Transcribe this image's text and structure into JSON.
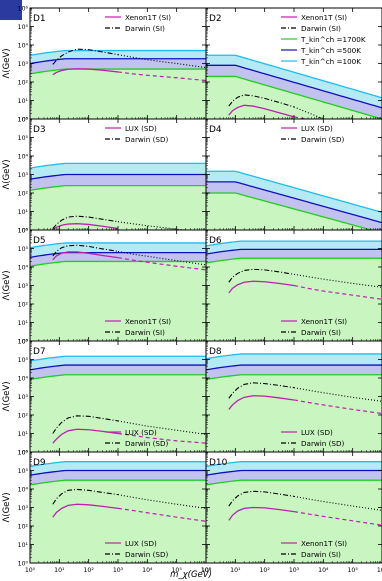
{
  "figure": {
    "ylabel": "Λ(GeV)",
    "xlabel": "m_χ(GeV)",
    "x_ticks": [
      "10⁰",
      "10¹",
      "10²",
      "10³",
      "10⁴",
      "10⁵",
      "10⁶",
      "10⁰",
      "10¹",
      "10²",
      "10³",
      "10⁴",
      "10⁵",
      "10⁶"
    ],
    "y_ticks": [
      "10⁰",
      "10¹",
      "10²",
      "10³",
      "10⁴",
      "10⁵",
      "10⁶"
    ],
    "colors": {
      "green_fill": "#c8f5c0",
      "purple_fill": "#c2c2f0",
      "cyan_fill": "#b4eaf4",
      "green_line": "#22cc22",
      "blue_line": "#1010bb",
      "cyan_line": "#22bbee",
      "magenta_line": "#bb22aa",
      "black_line": "#000000"
    },
    "temperature_legend": [
      {
        "label": "T_kin^ch =1700K",
        "color": "#22cc22"
      },
      {
        "label": "T_kin^ch =500K",
        "color": "#1010bb"
      },
      {
        "label": "T_kin^ch =100K",
        "color": "#22bbee"
      }
    ]
  },
  "chart_data": [
    {
      "type": "line",
      "panel": "D1",
      "xscale": "log",
      "yscale": "log",
      "xlim": [
        1,
        1000000
      ],
      "ylim": [
        1,
        1000000
      ],
      "band_shape": "flat",
      "bands": {
        "T1700K": 500,
        "T500K": 1800,
        "T100K": 5000
      },
      "series": [
        {
          "name": "Xenon1T (SI)",
          "style": "solid",
          "x": [
            6,
            8,
            12,
            20,
            40,
            100,
            300,
            1000,
            3000,
            10000,
            100000,
            1000000
          ],
          "y": [
            250,
            330,
            420,
            490,
            520,
            500,
            430,
            350,
            280,
            230,
            170,
            120
          ]
        },
        {
          "name": "Darwin (SI)",
          "style": "dashdot",
          "x": [
            6,
            8,
            12,
            20,
            40,
            100,
            300,
            1000,
            3000,
            10000,
            100000,
            1000000
          ],
          "y": [
            900,
            1500,
            2600,
            4200,
            6000,
            5600,
            4200,
            3000,
            2200,
            1600,
            1000,
            600
          ]
        }
      ],
      "legend": [
        "Xenon1T (SI)",
        "Darwin (SI)"
      ]
    },
    {
      "type": "line",
      "panel": "D2",
      "xscale": "log",
      "yscale": "log",
      "xlim": [
        1,
        1000000
      ],
      "ylim": [
        1,
        1000000
      ],
      "band_shape": "falling",
      "bands": {
        "T1700K": [
          200,
          1
        ],
        "T500K": [
          800,
          4
        ],
        "T100K": [
          2800,
          14
        ]
      },
      "series": [
        {
          "name": "Xenon1T (SI)",
          "style": "solid",
          "x": [
            6,
            8,
            12,
            20,
            40,
            100,
            300,
            1000,
            2500
          ],
          "y": [
            1.6,
            2.8,
            4.2,
            5.5,
            5.0,
            3.6,
            2.2,
            1.3,
            1.0
          ]
        },
        {
          "name": "Darwin (SI)",
          "style": "dashdot",
          "x": [
            6,
            8,
            12,
            20,
            40,
            100,
            300,
            1000,
            3000,
            10000
          ],
          "y": [
            5,
            9,
            15,
            20,
            18,
            13,
            8,
            4.5,
            2.2,
            1.0
          ]
        }
      ],
      "legend": [
        "Xenon1T (SI)",
        "Darwin (SI)",
        "T_kin^ch =1700K",
        "T_kin^ch =500K",
        "T_kin^ch =100K"
      ]
    },
    {
      "type": "line",
      "panel": "D3",
      "xscale": "log",
      "yscale": "log",
      "xlim": [
        1,
        1000000
      ],
      "ylim": [
        1,
        1000000
      ],
      "band_shape": "flat",
      "bands": {
        "T1700K": 250,
        "T500K": 1000,
        "T100K": 4000
      },
      "series": [
        {
          "name": "LUX (SD)",
          "style": "solid",
          "x": [
            6,
            8,
            12,
            20,
            40,
            100,
            300,
            1000
          ],
          "y": [
            1.1,
            1.4,
            1.8,
            2.1,
            2.2,
            2.0,
            1.6,
            1.2
          ]
        },
        {
          "name": "Darwin (SD)",
          "style": "dashdot",
          "x": [
            6,
            8,
            12,
            20,
            40,
            100,
            300,
            1000,
            10000,
            100000,
            1000000
          ],
          "y": [
            1.2,
            2.0,
            3.4,
            5.0,
            5.6,
            5.0,
            3.8,
            2.8,
            1.7,
            1.1,
            0.8
          ]
        }
      ],
      "legend": [
        "LUX (SD)",
        "Darwin (SD)"
      ]
    },
    {
      "type": "line",
      "panel": "D4",
      "xscale": "log",
      "yscale": "log",
      "xlim": [
        1,
        1000000
      ],
      "ylim": [
        1,
        1000000
      ],
      "band_shape": "falling",
      "bands": {
        "T1700K": [
          100,
          0.7
        ],
        "T500K": [
          400,
          2.5
        ],
        "T100K": [
          1500,
          9
        ]
      },
      "series": [],
      "legend": [
        "LUX (SD)",
        "Darwin (SD)"
      ]
    },
    {
      "type": "line",
      "panel": "D5",
      "xscale": "log",
      "yscale": "log",
      "xlim": [
        1,
        1000000
      ],
      "ylim": [
        1,
        1000000
      ],
      "band_shape": "flat",
      "bands": {
        "T1700K": 20000,
        "T500K": 60000,
        "T100K": 200000
      },
      "series": [
        {
          "name": "Xenon1T (SI)",
          "style": "solid",
          "x": [
            6,
            8,
            12,
            20,
            40,
            100,
            300,
            1000,
            3000,
            10000,
            100000,
            1000000
          ],
          "y": [
            25000,
            40000,
            55000,
            65000,
            65000,
            55000,
            42000,
            32000,
            24000,
            18000,
            11000,
            7000
          ]
        },
        {
          "name": "Darwin (SI)",
          "style": "dashdot",
          "x": [
            6,
            8,
            12,
            20,
            40,
            100,
            300,
            1000,
            3000,
            10000,
            100000,
            1000000
          ],
          "y": [
            40000,
            70000,
            110000,
            140000,
            150000,
            130000,
            95000,
            70000,
            50000,
            38000,
            22000,
            13000
          ]
        }
      ],
      "legend": [
        "Xenon1T (SI)",
        "Darwin (SI)"
      ]
    },
    {
      "type": "line",
      "panel": "D6",
      "xscale": "log",
      "yscale": "log",
      "xlim": [
        1,
        1000000
      ],
      "ylim": [
        1,
        1000000
      ],
      "band_shape": "flat",
      "bands": {
        "T1700K": 30000,
        "T500K": 90000,
        "T100K": 250000
      },
      "series": [
        {
          "name": "Xenon1T (SI)",
          "style": "solid",
          "x": [
            6,
            8,
            12,
            20,
            40,
            100,
            300,
            1000,
            3000,
            10000,
            100000,
            1000000
          ],
          "y": [
            400,
            700,
            1100,
            1500,
            1700,
            1600,
            1300,
            1000,
            700,
            500,
            300,
            180
          ]
        },
        {
          "name": "Darwin (SI)",
          "style": "dashdot",
          "x": [
            6,
            8,
            12,
            20,
            40,
            100,
            300,
            1000,
            3000,
            10000,
            100000,
            1000000
          ],
          "y": [
            1500,
            2800,
            4500,
            6500,
            7500,
            7000,
            5500,
            4000,
            3000,
            2200,
            1300,
            800
          ]
        }
      ],
      "legend": [
        "Xenon1T (SI)",
        "Darwin (SI)"
      ]
    },
    {
      "type": "line",
      "panel": "D7",
      "xscale": "log",
      "yscale": "log",
      "xlim": [
        1,
        1000000
      ],
      "ylim": [
        1,
        1000000
      ],
      "band_shape": "flat",
      "bands": {
        "T1700K": 15000,
        "T500K": 50000,
        "T100K": 150000
      },
      "series": [
        {
          "name": "LUX (SD)",
          "style": "solid",
          "x": [
            6,
            8,
            12,
            20,
            40,
            100,
            300,
            1000,
            3000,
            10000,
            100000,
            1000000
          ],
          "y": [
            3,
            5,
            9,
            14,
            17,
            16,
            13,
            10,
            8,
            6,
            4,
            3
          ]
        },
        {
          "name": "Darwin (SD)",
          "style": "dashdot",
          "x": [
            6,
            8,
            12,
            20,
            40,
            100,
            300,
            1000,
            3000,
            10000,
            100000,
            1000000
          ],
          "y": [
            10,
            20,
            40,
            70,
            90,
            85,
            65,
            48,
            35,
            25,
            15,
            9
          ]
        }
      ],
      "legend": [
        "LUX (SD)",
        "Darwin (SD)"
      ]
    },
    {
      "type": "line",
      "panel": "D8",
      "xscale": "log",
      "yscale": "log",
      "xlim": [
        1,
        1000000
      ],
      "ylim": [
        1,
        1000000
      ],
      "band_shape": "flat",
      "bands": {
        "T1700K": 15000,
        "T500K": 50000,
        "T100K": 200000
      },
      "series": [
        {
          "name": "LUX (SD)",
          "style": "solid",
          "x": [
            6,
            8,
            12,
            20,
            40,
            100,
            300,
            1000,
            3000,
            10000,
            100000,
            1000000
          ],
          "y": [
            200,
            350,
            600,
            900,
            1100,
            1050,
            850,
            650,
            480,
            350,
            200,
            120
          ]
        },
        {
          "name": "Darwin (SD)",
          "style": "dashdot",
          "x": [
            6,
            8,
            12,
            20,
            40,
            100,
            300,
            1000,
            3000,
            10000,
            100000,
            1000000
          ],
          "y": [
            800,
            1500,
            2800,
            4500,
            5500,
            5000,
            4000,
            3000,
            2200,
            1600,
            900,
            550
          ]
        }
      ],
      "legend": [
        "LUX (SD)",
        "Darwin (SD)"
      ]
    },
    {
      "type": "line",
      "panel": "D9",
      "xscale": "log",
      "yscale": "log",
      "xlim": [
        1,
        1000000
      ],
      "ylim": [
        1,
        1000000
      ],
      "band_shape": "flat",
      "bands": {
        "T1700K": 30000,
        "T500K": 100000,
        "T100K": 300000
      },
      "series": [
        {
          "name": "LUX (SD)",
          "style": "solid",
          "x": [
            6,
            8,
            12,
            20,
            40,
            100,
            300,
            1000,
            3000,
            10000,
            100000,
            1000000
          ],
          "y": [
            300,
            550,
            900,
            1300,
            1500,
            1400,
            1150,
            900,
            700,
            520,
            300,
            180
          ]
        },
        {
          "name": "Darwin (SD)",
          "style": "dashdot",
          "x": [
            6,
            8,
            12,
            20,
            40,
            100,
            300,
            1000,
            3000,
            10000,
            100000,
            1000000
          ],
          "y": [
            1500,
            3000,
            5500,
            8500,
            9500,
            8500,
            6500,
            5000,
            3600,
            2600,
            1500,
            900
          ]
        }
      ],
      "legend": [
        "LUX (SD)",
        "Darwin (SD)"
      ]
    },
    {
      "type": "line",
      "panel": "D10",
      "xscale": "log",
      "yscale": "log",
      "xlim": [
        1,
        1000000
      ],
      "ylim": [
        1,
        1000000
      ],
      "band_shape": "flat",
      "bands": {
        "T1700K": 30000,
        "T500K": 100000,
        "T100K": 300000
      },
      "series": [
        {
          "name": "Xenon1T (SI)",
          "style": "solid",
          "x": [
            6,
            8,
            12,
            20,
            40,
            100,
            300,
            1000,
            3000,
            10000,
            100000,
            1000000
          ],
          "y": [
            200,
            380,
            650,
            900,
            1000,
            950,
            780,
            600,
            450,
            330,
            190,
            110
          ]
        },
        {
          "name": "Darwin (SI)",
          "style": "dashdot",
          "x": [
            6,
            8,
            12,
            20,
            40,
            100,
            300,
            1000,
            3000,
            10000,
            100000,
            1000000
          ],
          "y": [
            1200,
            2300,
            4200,
            6500,
            7500,
            7000,
            5400,
            4000,
            2900,
            2100,
            1200,
            700
          ]
        }
      ],
      "legend": [
        "Xenon1T (SI)",
        "Darwin (SI)"
      ]
    }
  ]
}
